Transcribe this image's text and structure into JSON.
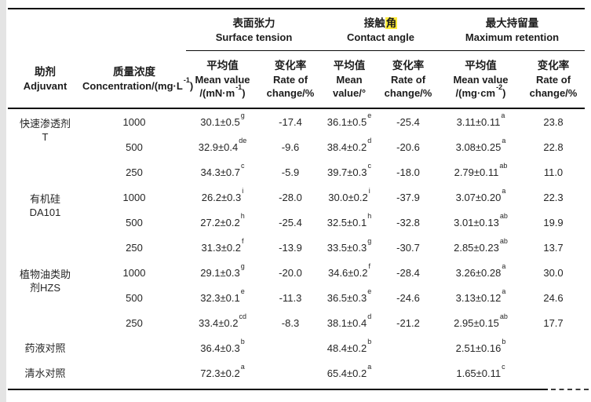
{
  "page": {
    "background": "#ffffff",
    "band_color": "#e4e4e4",
    "rule_color": "#0a0a0a",
    "text_color": "#262626",
    "highlight_color": "#ffeb3b"
  },
  "header": {
    "adjuvant": {
      "zh": "助剂",
      "en": "Adjuvant"
    },
    "concentration": {
      "zh": "质量浓度",
      "en": "Concentration/(mg·L",
      "en_sup": "-1",
      "en_end": ")"
    },
    "groups": {
      "surface_tension": {
        "zh": "表面张力",
        "en": "Surface tension"
      },
      "contact_angle": {
        "zh_pre": "接触",
        "zh_hl": "角",
        "en": "Contact angle"
      },
      "max_retention": {
        "zh": "最大持留量",
        "en": "Maximum retention"
      }
    },
    "leaf": {
      "st_mean": {
        "zh": "平均值",
        "en1": "Mean value",
        "en2": "/(mN·m",
        "en2_sup": "-1",
        "en2_end": ")"
      },
      "st_rate": {
        "zh": "变化率",
        "en1": "Rate of",
        "en2": "change/%"
      },
      "ca_mean": {
        "zh": "平均值",
        "en1": "Mean",
        "en2": "value/°"
      },
      "ca_rate": {
        "zh": "变化率",
        "en1": "Rate of",
        "en2": "change/%"
      },
      "mr_mean": {
        "zh": "平均值",
        "en1": "Mean value",
        "en2": "/(mg·cm",
        "en2_sup": "-2",
        "en2_end": ")"
      },
      "mr_rate": {
        "zh": "变化率",
        "en1": "Rate of",
        "en2": "change/%"
      }
    }
  },
  "rows": [
    {
      "group": {
        "lines": [
          "快速渗透剂",
          "T"
        ],
        "span": 3
      },
      "conc": "1000",
      "st": {
        "v": "30.1±0.5",
        "s": "g"
      },
      "st_rate": "-17.4",
      "ca": {
        "v": "36.1±0.5",
        "s": "e"
      },
      "ca_rate": "-25.4",
      "mr": {
        "v": "3.11±0.11",
        "s": "a"
      },
      "mr_rate": "23.8"
    },
    {
      "conc": "500",
      "st": {
        "v": "32.9±0.4",
        "s": "de"
      },
      "st_rate": "-9.6",
      "ca": {
        "v": "38.4±0.2",
        "s": "d"
      },
      "ca_rate": "-20.6",
      "mr": {
        "v": "3.08±0.25",
        "s": "a"
      },
      "mr_rate": "22.8"
    },
    {
      "conc": "250",
      "st": {
        "v": "34.3±0.7",
        "s": "c"
      },
      "st_rate": "-5.9",
      "ca": {
        "v": "39.7±0.3",
        "s": "c"
      },
      "ca_rate": "-18.0",
      "mr": {
        "v": "2.79±0.11",
        "s": "ab"
      },
      "mr_rate": "11.0"
    },
    {
      "group": {
        "lines": [
          "有机硅",
          "DA101"
        ],
        "span": 3
      },
      "conc": "1000",
      "st": {
        "v": "26.2±0.3",
        "s": "i"
      },
      "st_rate": "-28.0",
      "ca": {
        "v": "30.0±0.2",
        "s": "i"
      },
      "ca_rate": "-37.9",
      "mr": {
        "v": "3.07±0.20",
        "s": "a"
      },
      "mr_rate": "22.3"
    },
    {
      "conc": "500",
      "st": {
        "v": "27.2±0.2",
        "s": "h"
      },
      "st_rate": "-25.4",
      "ca": {
        "v": "32.5±0.1",
        "s": "h"
      },
      "ca_rate": "-32.8",
      "mr": {
        "v": "3.01±0.13",
        "s": "ab"
      },
      "mr_rate": "19.9"
    },
    {
      "conc": "250",
      "st": {
        "v": "31.3±0.2",
        "s": "f"
      },
      "st_rate": "-13.9",
      "ca": {
        "v": "33.5±0.3",
        "s": "g"
      },
      "ca_rate": "-30.7",
      "mr": {
        "v": "2.85±0.23",
        "s": "ab"
      },
      "mr_rate": "13.7"
    },
    {
      "group": {
        "lines": [
          "植物油类助",
          "剂HZS"
        ],
        "span": 3
      },
      "conc": "1000",
      "st": {
        "v": "29.1±0.3",
        "s": "g"
      },
      "st_rate": "-20.0",
      "ca": {
        "v": "34.6±0.2",
        "s": "f"
      },
      "ca_rate": "-28.4",
      "mr": {
        "v": "3.26±0.28",
        "s": "a"
      },
      "mr_rate": "30.0"
    },
    {
      "conc": "500",
      "st": {
        "v": "32.3±0.1",
        "s": "e"
      },
      "st_rate": "-11.3",
      "ca": {
        "v": "36.5±0.3",
        "s": "e"
      },
      "ca_rate": "-24.6",
      "mr": {
        "v": "3.13±0.12",
        "s": "a"
      },
      "mr_rate": "24.6"
    },
    {
      "conc": "250",
      "st": {
        "v": "33.4±0.2",
        "s": "cd"
      },
      "st_rate": "-8.3",
      "ca": {
        "v": "38.1±0.4",
        "s": "d"
      },
      "ca_rate": "-21.2",
      "mr": {
        "v": "2.95±0.15",
        "s": "ab"
      },
      "mr_rate": "17.7"
    },
    {
      "group": {
        "lines": [
          "药液对照"
        ],
        "span": 1
      },
      "conc": "",
      "st": {
        "v": "36.4±0.3",
        "s": "b"
      },
      "st_rate": "",
      "ca": {
        "v": "48.4±0.2",
        "s": "b"
      },
      "ca_rate": "",
      "mr": {
        "v": "2.51±0.16",
        "s": "b"
      },
      "mr_rate": ""
    },
    {
      "group": {
        "lines": [
          "清水对照"
        ],
        "span": 1
      },
      "conc": "",
      "st": {
        "v": "72.3±0.2",
        "s": "a"
      },
      "st_rate": "",
      "ca": {
        "v": "65.4±0.2",
        "s": "a"
      },
      "ca_rate": "",
      "mr": {
        "v": "1.65±0.11",
        "s": "c"
      },
      "mr_rate": ""
    }
  ]
}
